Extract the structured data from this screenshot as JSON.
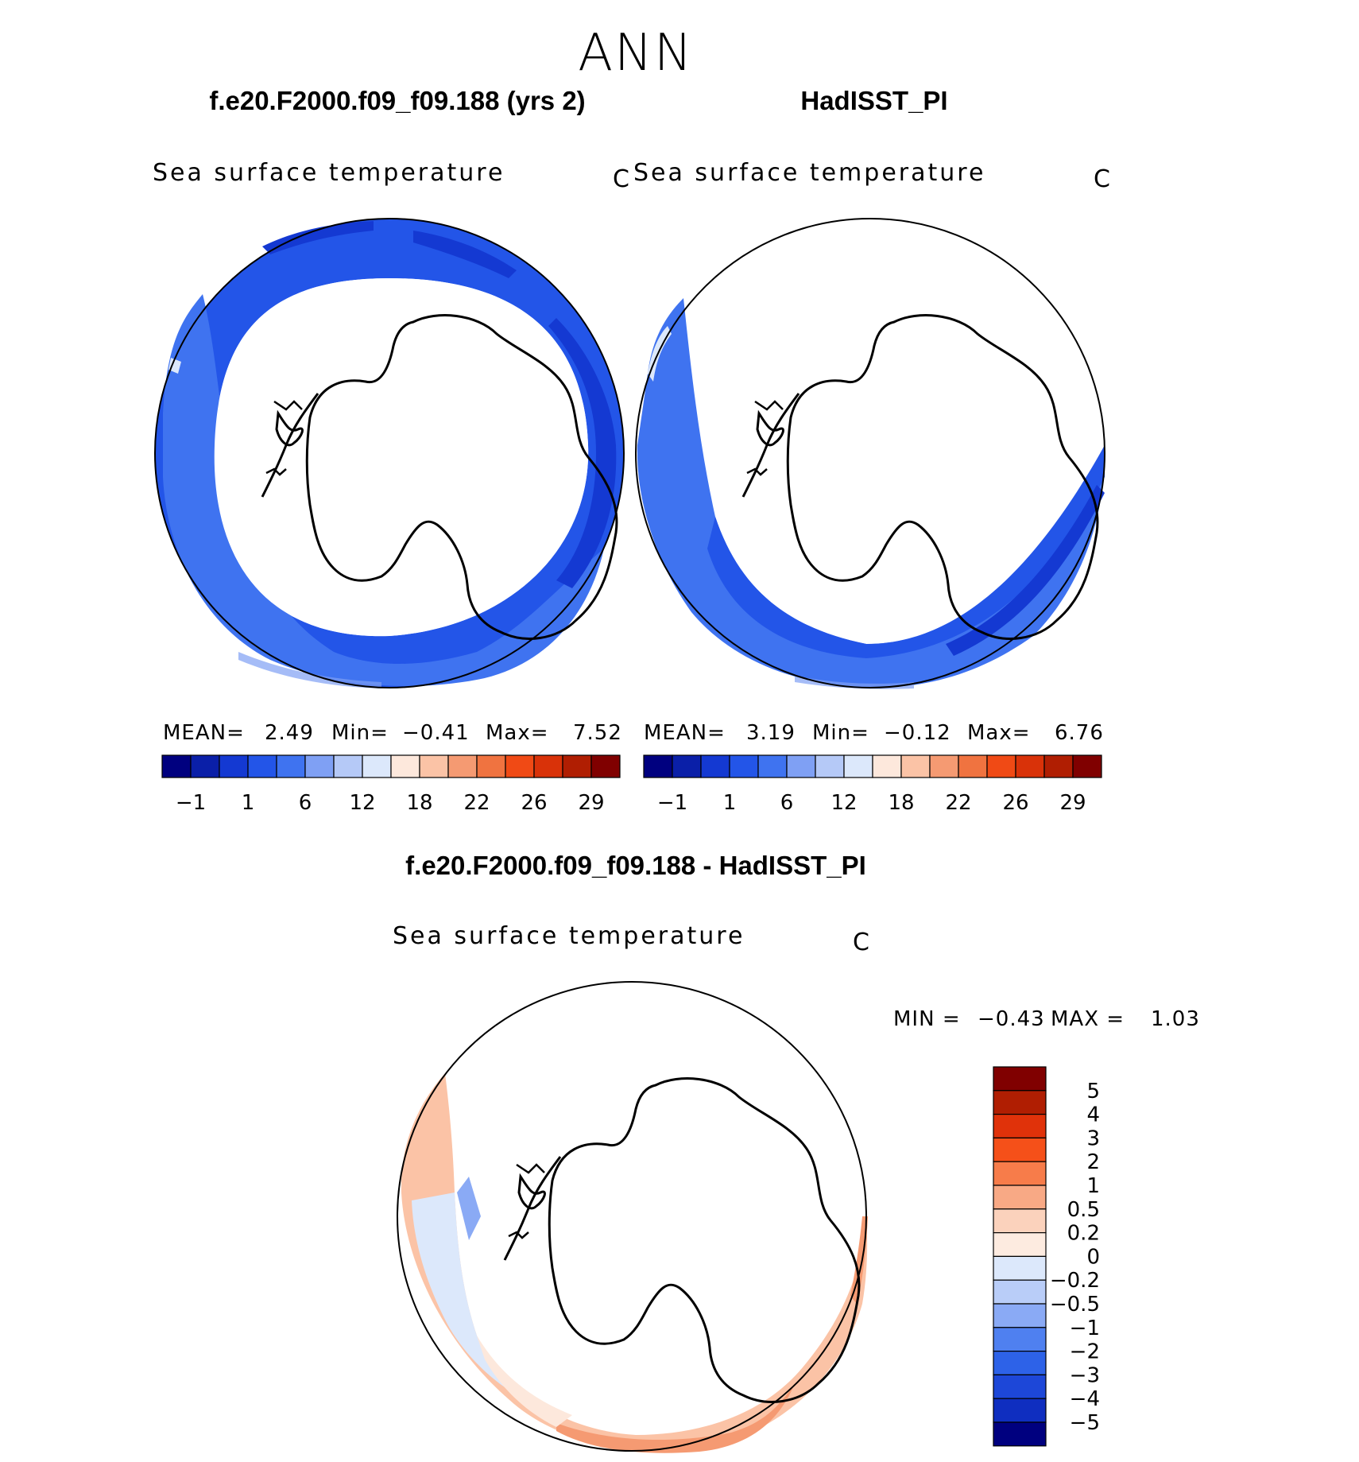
{
  "figure": {
    "title": "ANN",
    "panels": [
      {
        "id": "model",
        "title": "f.e20.F2000.f09_f09.188 (yrs 2)",
        "variable": "Sea surface temperature",
        "units": "C",
        "stats": {
          "mean_label": "MEAN=",
          "mean": "2.49",
          "min_label": "Min=",
          "min": "−0.41",
          "max_label": "Max=",
          "max": "7.52"
        }
      },
      {
        "id": "obs",
        "title": "HadISST_PI",
        "variable": "Sea surface temperature",
        "units": "C",
        "stats": {
          "mean_label": "MEAN=",
          "mean": "3.19",
          "min_label": "Min=",
          "min": "−0.12",
          "max_label": "Max=",
          "max": "6.76"
        }
      },
      {
        "id": "diff",
        "title": "f.e20.F2000.f09_f09.188 - HadISST_PI",
        "variable": "Sea surface temperature",
        "units": "C",
        "stats": {
          "min_label": "MIN =",
          "min": "−0.43",
          "max_label": "MAX =",
          "max": "1.03"
        }
      }
    ],
    "sst_colorbar": {
      "colors": [
        "#00007f",
        "#0a1fa8",
        "#1439d2",
        "#2355e8",
        "#3f73f0",
        "#7fa0f4",
        "#b5c9f7",
        "#dce8fb",
        "#fde8dc",
        "#fbc3a6",
        "#f59a72",
        "#f07340",
        "#f04a15",
        "#d93209",
        "#b01e02",
        "#800000"
      ],
      "tick_labels": [
        "−1",
        "1",
        "6",
        "12",
        "18",
        "22",
        "26",
        "29"
      ]
    },
    "diff_colorbar": {
      "colors": [
        "#800000",
        "#b01e02",
        "#e0320a",
        "#f55019",
        "#f77c4a",
        "#f8a985",
        "#fbd2bc",
        "#fdebe0",
        "#dce8fb",
        "#b9cdf8",
        "#8aaaf5",
        "#4f80f0",
        "#2d62e8",
        "#1d47d8",
        "#0f2ec0",
        "#00007f"
      ],
      "tick_labels": [
        "5",
        "4",
        "3",
        "2",
        "1",
        "0.5",
        "0.2",
        "0",
        "−0.2",
        "−0.5",
        "−1",
        "−2",
        "−3",
        "−4",
        "−5"
      ]
    }
  }
}
